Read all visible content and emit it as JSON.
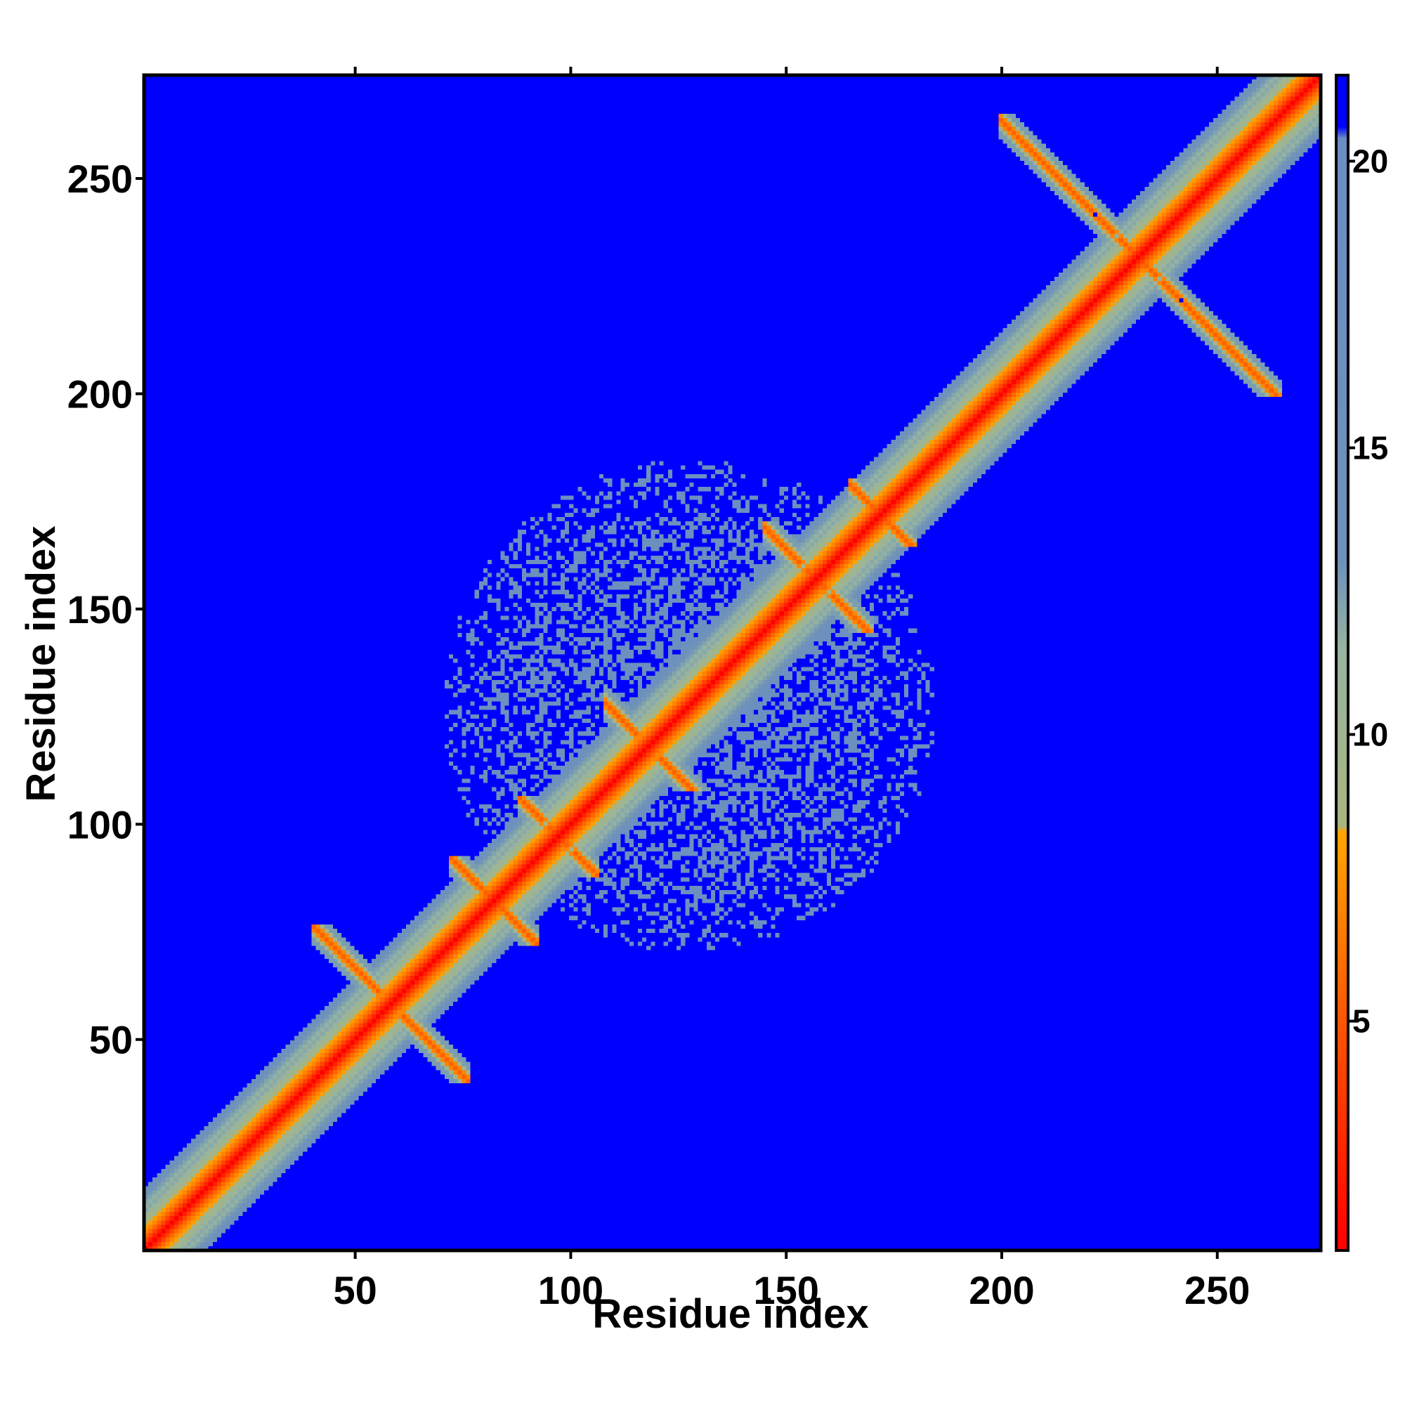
{
  "chart_data": {
    "type": "heatmap",
    "title": "",
    "xlabel": "Residue index",
    "ylabel": "Residue index",
    "xlim": [
      1,
      274
    ],
    "ylim": [
      1,
      274
    ],
    "xticks": [
      50,
      100,
      150,
      200,
      250
    ],
    "yticks": [
      50,
      100,
      150,
      200,
      250
    ],
    "n_residues": 274,
    "colorbar": {
      "ticks": [
        5,
        10,
        15,
        20
      ],
      "range": [
        1,
        21.5
      ],
      "stops": [
        {
          "value": 1.0,
          "color": "#ff0000"
        },
        {
          "value": 5.0,
          "color": "#ff5500"
        },
        {
          "value": 8.3,
          "color": "#ffa500"
        },
        {
          "value": 8.4,
          "color": "#a9b57f"
        },
        {
          "value": 11.5,
          "color": "#96b4a0"
        },
        {
          "value": 13.0,
          "color": "#6e91bb"
        },
        {
          "value": 20.4,
          "color": "#6a8ec3"
        },
        {
          "value": 20.6,
          "color": "#0000ff"
        },
        {
          "value": 21.5,
          "color": "#0000ff"
        }
      ]
    },
    "features": [
      {
        "kind": "diagonal",
        "from": 1,
        "to": 274,
        "width": [
          3,
          9,
          14
        ]
      },
      {
        "kind": "antiparallel-hairpin",
        "center": [
          58,
          58
        ],
        "x_range": [
          40,
          75
        ],
        "y_range": [
          40,
          76
        ]
      },
      {
        "kind": "antiparallel-hairpin",
        "center": [
          82,
          82
        ],
        "x_range": [
          72,
          90
        ],
        "y_range": [
          72,
          92
        ]
      },
      {
        "kind": "antiparallel-hairpin",
        "center": [
          97,
          97
        ],
        "x_range": [
          88,
          106
        ],
        "y_range": [
          88,
          106
        ]
      },
      {
        "kind": "antiparallel-hairpin",
        "center": [
          118,
          118
        ],
        "x_range": [
          108,
          132
        ],
        "y_range": [
          108,
          132
        ]
      },
      {
        "kind": "antiparallel-hairpin",
        "center": [
          157,
          157
        ],
        "x_range": [
          145,
          170
        ],
        "y_range": [
          145,
          170
        ]
      },
      {
        "kind": "antiparallel-hairpin",
        "center": [
          172,
          172
        ],
        "x_range": [
          165,
          180
        ],
        "y_range": [
          165,
          180
        ]
      },
      {
        "kind": "antiparallel-hairpin",
        "center": [
          232,
          232
        ],
        "x_range": [
          200,
          265
        ],
        "y_range": [
          200,
          265
        ]
      },
      {
        "kind": "contact-cluster",
        "x_range": [
          70,
          185
        ],
        "y_range": [
          70,
          185
        ]
      }
    ]
  }
}
